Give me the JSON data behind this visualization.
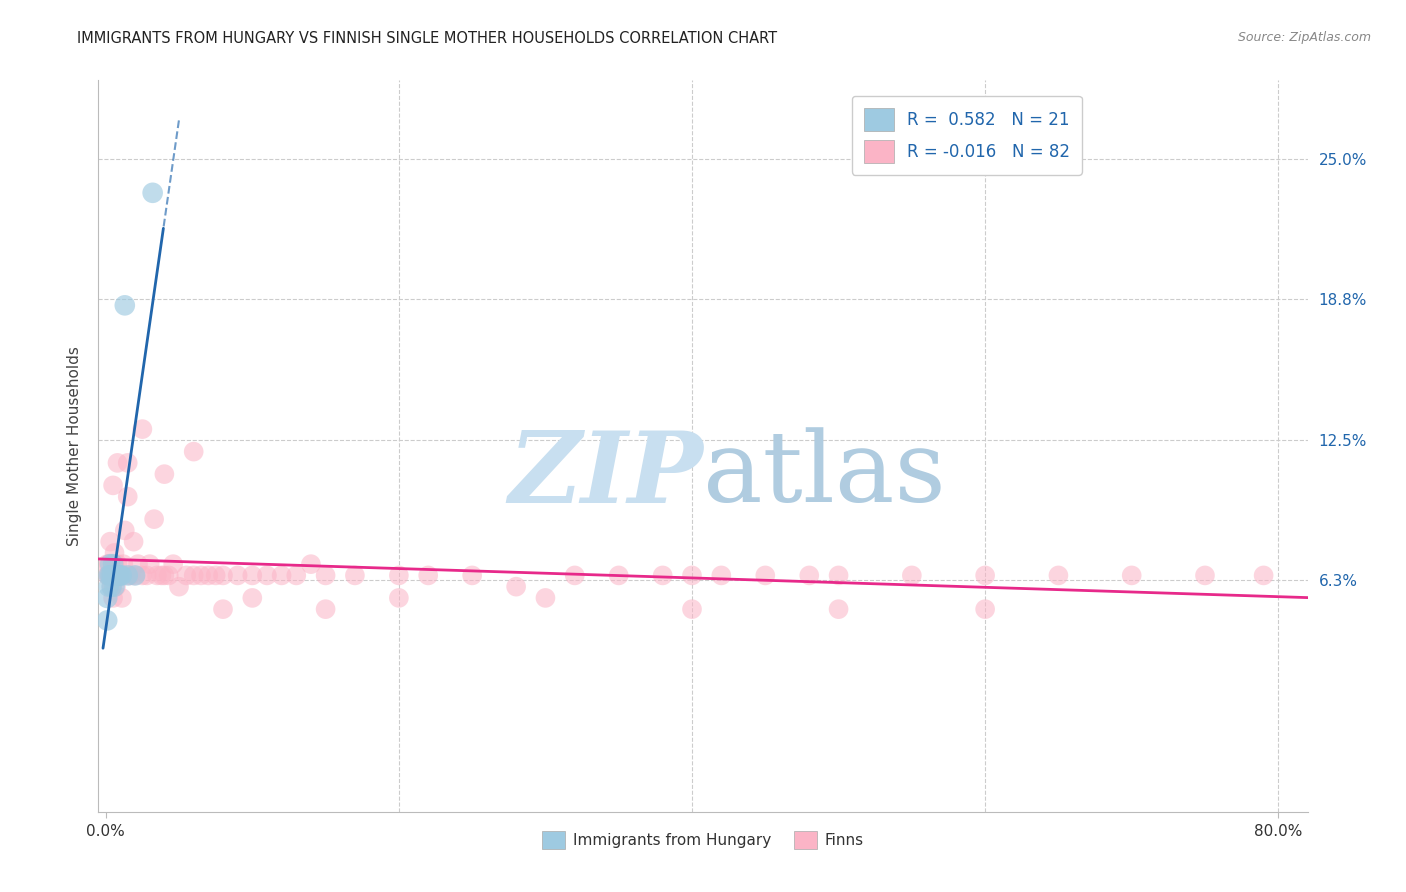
{
  "title": "IMMIGRANTS FROM HUNGARY VS FINNISH SINGLE MOTHER HOUSEHOLDS CORRELATION CHART",
  "source": "Source: ZipAtlas.com",
  "ylabel": "Single Mother Households",
  "y_tick_labels_right": [
    "25.0%",
    "18.8%",
    "12.5%",
    "6.3%"
  ],
  "y_tick_values": [
    0.25,
    0.188,
    0.125,
    0.063
  ],
  "xlim": [
    -0.005,
    0.82
  ],
  "ylim": [
    -0.04,
    0.285
  ],
  "legend_labels": [
    "Immigrants from Hungary",
    "Finns"
  ],
  "legend_R": [
    "0.582",
    "-0.016"
  ],
  "legend_N": [
    "21",
    "82"
  ],
  "color_blue": "#9ecae1",
  "color_pink": "#fbb4c6",
  "trendline_blue_color": "#2166ac",
  "trendline_pink_color": "#e7298a",
  "watermark_zip_color": "#c8dff0",
  "watermark_atlas_color": "#b0cce0",
  "background_color": "#ffffff",
  "grid_color": "#cccccc",
  "hungary_x": [
    0.001,
    0.001,
    0.002,
    0.002,
    0.003,
    0.003,
    0.004,
    0.004,
    0.005,
    0.005,
    0.006,
    0.006,
    0.007,
    0.008,
    0.009,
    0.01,
    0.011,
    0.013,
    0.015,
    0.02,
    0.032
  ],
  "hungary_y": [
    0.045,
    0.055,
    0.06,
    0.065,
    0.065,
    0.07,
    0.06,
    0.065,
    0.065,
    0.07,
    0.065,
    0.06,
    0.065,
    0.065,
    0.065,
    0.065,
    0.065,
    0.185,
    0.065,
    0.065,
    0.235
  ],
  "finns_x": [
    0.001,
    0.001,
    0.002,
    0.002,
    0.003,
    0.003,
    0.004,
    0.004,
    0.005,
    0.005,
    0.006,
    0.006,
    0.007,
    0.007,
    0.008,
    0.009,
    0.01,
    0.011,
    0.012,
    0.013,
    0.015,
    0.016,
    0.017,
    0.019,
    0.02,
    0.022,
    0.025,
    0.028,
    0.03,
    0.033,
    0.035,
    0.038,
    0.04,
    0.043,
    0.046,
    0.05,
    0.055,
    0.06,
    0.065,
    0.07,
    0.075,
    0.08,
    0.09,
    0.1,
    0.11,
    0.12,
    0.13,
    0.14,
    0.15,
    0.17,
    0.2,
    0.22,
    0.25,
    0.28,
    0.32,
    0.35,
    0.38,
    0.4,
    0.42,
    0.45,
    0.48,
    0.5,
    0.55,
    0.6,
    0.65,
    0.7,
    0.75,
    0.79,
    0.6,
    0.5,
    0.4,
    0.3,
    0.2,
    0.15,
    0.1,
    0.08,
    0.06,
    0.04,
    0.025,
    0.015,
    0.008,
    0.005
  ],
  "finns_y": [
    0.065,
    0.07,
    0.065,
    0.07,
    0.065,
    0.08,
    0.065,
    0.06,
    0.065,
    0.055,
    0.07,
    0.075,
    0.065,
    0.06,
    0.07,
    0.065,
    0.065,
    0.055,
    0.07,
    0.085,
    0.1,
    0.065,
    0.065,
    0.08,
    0.065,
    0.07,
    0.065,
    0.065,
    0.07,
    0.09,
    0.065,
    0.065,
    0.065,
    0.065,
    0.07,
    0.06,
    0.065,
    0.065,
    0.065,
    0.065,
    0.065,
    0.065,
    0.065,
    0.065,
    0.065,
    0.065,
    0.065,
    0.07,
    0.065,
    0.065,
    0.065,
    0.065,
    0.065,
    0.06,
    0.065,
    0.065,
    0.065,
    0.065,
    0.065,
    0.065,
    0.065,
    0.065,
    0.065,
    0.065,
    0.065,
    0.065,
    0.065,
    0.065,
    0.05,
    0.05,
    0.05,
    0.055,
    0.055,
    0.05,
    0.055,
    0.05,
    0.12,
    0.11,
    0.13,
    0.115,
    0.115,
    0.105
  ]
}
